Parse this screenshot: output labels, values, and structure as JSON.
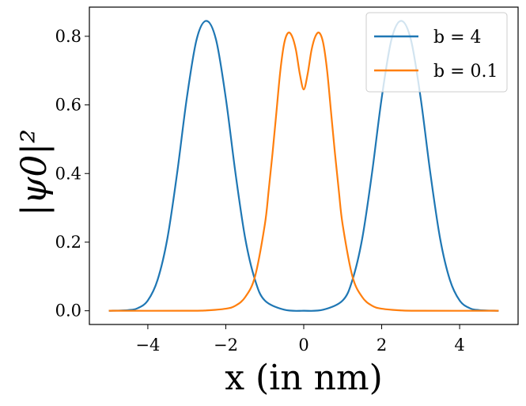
{
  "chart_data": {
    "type": "line",
    "xlabel": "x (in nm)",
    "ylabel": "|ψ0|²",
    "xlim": [
      -5.5,
      5.5
    ],
    "ylim": [
      -0.04,
      0.885
    ],
    "x_ticks": [
      -4,
      -2,
      0,
      2,
      4
    ],
    "x_tick_labels": [
      "−4",
      "−2",
      "0",
      "2",
      "4"
    ],
    "y_ticks": [
      0.0,
      0.2,
      0.4,
      0.6,
      0.8
    ],
    "y_tick_labels": [
      "0.0",
      "0.2",
      "0.4",
      "0.6",
      "0.8"
    ],
    "grid": false,
    "legend_position": "upper-right",
    "series": [
      {
        "name": "b = 4",
        "color": "#1f77b4",
        "x": [
          -5.0,
          -4.5,
          -4.25,
          -4.0,
          -3.75,
          -3.5,
          -3.25,
          -3.0,
          -2.75,
          -2.5,
          -2.25,
          -2.0,
          -1.75,
          -1.5,
          -1.25,
          -1.0,
          -0.5,
          0.0,
          0.5,
          1.0,
          1.25,
          1.5,
          1.75,
          2.0,
          2.25,
          2.5,
          2.75,
          3.0,
          3.25,
          3.5,
          3.75,
          4.0,
          4.25,
          4.5,
          5.0
        ],
        "values": [
          0.0,
          0.002,
          0.008,
          0.03,
          0.09,
          0.21,
          0.4,
          0.62,
          0.79,
          0.845,
          0.79,
          0.62,
          0.4,
          0.21,
          0.09,
          0.03,
          0.003,
          0.0,
          0.003,
          0.03,
          0.09,
          0.21,
          0.4,
          0.62,
          0.79,
          0.845,
          0.79,
          0.62,
          0.4,
          0.21,
          0.09,
          0.03,
          0.008,
          0.002,
          0.0
        ]
      },
      {
        "name": "b = 0.1",
        "color": "#ff7f0e",
        "x": [
          -5.0,
          -3.0,
          -2.5,
          -2.0,
          -1.75,
          -1.5,
          -1.25,
          -1.0,
          -0.9,
          -0.8,
          -0.7,
          -0.6,
          -0.5,
          -0.4,
          -0.3,
          -0.2,
          -0.1,
          0.0,
          0.1,
          0.2,
          0.3,
          0.4,
          0.5,
          0.6,
          0.7,
          0.8,
          0.9,
          1.0,
          1.25,
          1.5,
          1.75,
          2.0,
          2.5,
          3.0,
          5.0
        ],
        "values": [
          0.0,
          0.0,
          0.001,
          0.006,
          0.015,
          0.04,
          0.1,
          0.25,
          0.35,
          0.46,
          0.58,
          0.7,
          0.78,
          0.81,
          0.8,
          0.76,
          0.69,
          0.645,
          0.69,
          0.76,
          0.8,
          0.81,
          0.78,
          0.7,
          0.58,
          0.46,
          0.35,
          0.25,
          0.1,
          0.04,
          0.015,
          0.006,
          0.001,
          0.0,
          0.0
        ]
      }
    ]
  }
}
